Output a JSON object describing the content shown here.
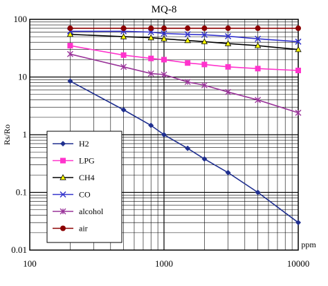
{
  "chart_data": {
    "type": "line",
    "title": "MQ-8",
    "xlabel": "ppm",
    "ylabel": "Rs/Ro",
    "x_scale": "log",
    "y_scale": "log",
    "xlim": [
      100,
      10000
    ],
    "ylim": [
      0.01,
      100
    ],
    "x_ticks": [
      {
        "value": 100,
        "label": "100"
      },
      {
        "value": 1000,
        "label": "1000"
      },
      {
        "value": 10000,
        "label": "10000"
      }
    ],
    "y_ticks": [
      {
        "value": 100,
        "label": "100"
      },
      {
        "value": 10,
        "label": "10"
      },
      {
        "value": 1,
        "label": "1"
      },
      {
        "value": 0.1,
        "label": "0.1"
      },
      {
        "value": 0.01,
        "label": "0.01"
      }
    ],
    "grid": true,
    "legend_position": "lower-left",
    "x": [
      200,
      500,
      800,
      1000,
      1500,
      2000,
      3000,
      5000,
      10000
    ],
    "series": [
      {
        "name": "H2",
        "color": "#1f2f8f",
        "marker": "diamond",
        "values": [
          8.5,
          2.7,
          1.45,
          1.0,
          0.58,
          0.38,
          0.22,
          0.1,
          0.03
        ]
      },
      {
        "name": "LPG",
        "color": "#ff33cc",
        "marker": "square",
        "values": [
          35,
          24,
          21,
          20,
          17.5,
          16.5,
          15,
          14,
          13
        ]
      },
      {
        "name": "CH4",
        "color": "#000000",
        "marker": "triangle",
        "values": [
          55,
          50,
          48,
          46,
          43,
          41,
          38,
          35,
          30
        ]
      },
      {
        "name": "CO",
        "color": "#3333cc",
        "marker": "x",
        "values": [
          62,
          62,
          60,
          57,
          55,
          54,
          51,
          46,
          41
        ]
      },
      {
        "name": "alcohol",
        "color": "#993399",
        "marker": "star",
        "values": [
          25,
          15,
          11.5,
          11,
          8.2,
          7.2,
          5.5,
          4,
          2.4
        ]
      },
      {
        "name": "air",
        "color": "#8b0000",
        "marker": "circle",
        "values": [
          70,
          70,
          70,
          70,
          70,
          70,
          70,
          70,
          70
        ]
      }
    ]
  }
}
